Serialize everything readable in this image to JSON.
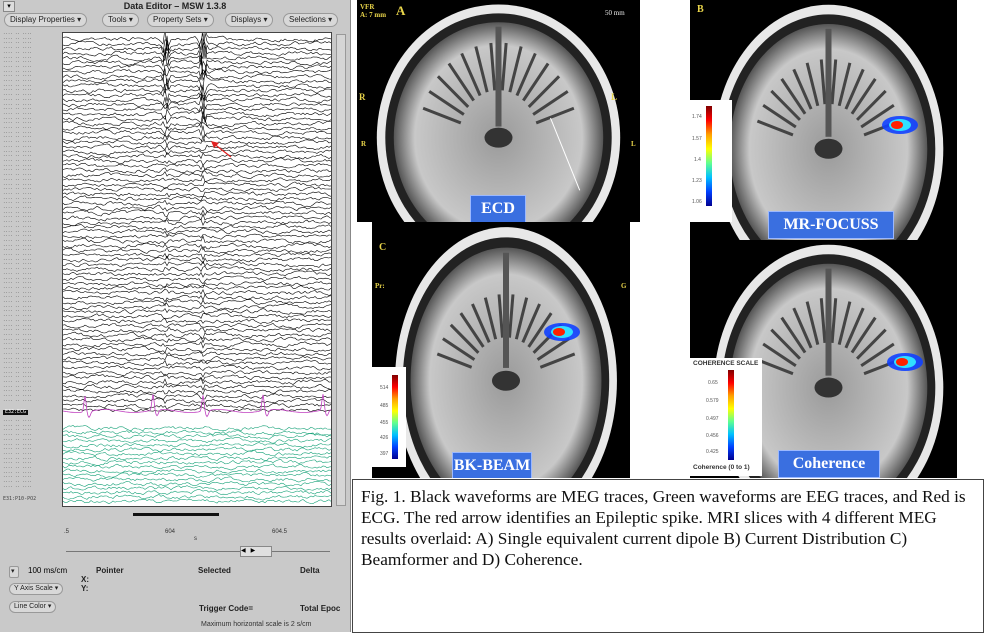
{
  "editor": {
    "title": "Data Editor – MSW 1.3.8",
    "window_menu_icon": "window-menu-icon",
    "menus": [
      "Display Properties",
      "Tools",
      "Property Sets",
      "Displays",
      "Selections"
    ],
    "highlighted_channel": "E32:ECG",
    "last_channel": "E31:P10-PO2",
    "time_ticks": [
      ".5",
      "604",
      "604.5"
    ],
    "time_unit": "s",
    "timebase": "100 ms/cm",
    "readout_headers": [
      "Pointer",
      "Selected",
      "Delta"
    ],
    "x_label": "X:",
    "y_label": "Y:",
    "y_axis_scale": "Y Axis Scale",
    "line_color": "Line Color",
    "trigger_code": "Trigger Code=",
    "total_epochs": "Total Epoc",
    "max_scale_note": "Maximum horizontal scale is 2 s/cm",
    "colors": {
      "meg": "#000000",
      "eeg": "#1aa37a",
      "ecg": "#c040c0",
      "arrow": "#e02020"
    }
  },
  "panels": [
    {
      "letter": "A",
      "method": "ECD",
      "overlay": [
        "VFR",
        "A: 7 mm"
      ],
      "scale_bar": "50 mm",
      "side_labels": [
        "R",
        "L",
        "R",
        "L"
      ]
    },
    {
      "letter": "B",
      "method": "MR-FOCUSS",
      "colorbar_ticks": [
        "1.74",
        "1.57",
        "1.4",
        "1.23",
        "1.06"
      ]
    },
    {
      "letter": "C",
      "method": "BK-BEAM",
      "corner": "Pr:",
      "right_corner": "G",
      "colorbar_ticks": [
        "514",
        "485",
        "455",
        "426",
        "397"
      ]
    },
    {
      "letter": "D",
      "method": "Coherence",
      "colorbar_title": "COHERENCE SCALE",
      "colorbar_footer": "Coherence (0 to 1)",
      "colorbar_ticks": [
        "0.65",
        "0.579",
        "0.497",
        "0.456",
        "0.425"
      ]
    }
  ],
  "caption": "Fig. 1. Black waveforms are MEG traces, Green waveforms are EEG traces, and Red is ECG. The red arrow identifies an Epileptic spike.  MRI slices with 4 different MEG results overlaid: A) Single equivalent current dipole B) Current Distribution C) Beamformer and D) Coherence."
}
